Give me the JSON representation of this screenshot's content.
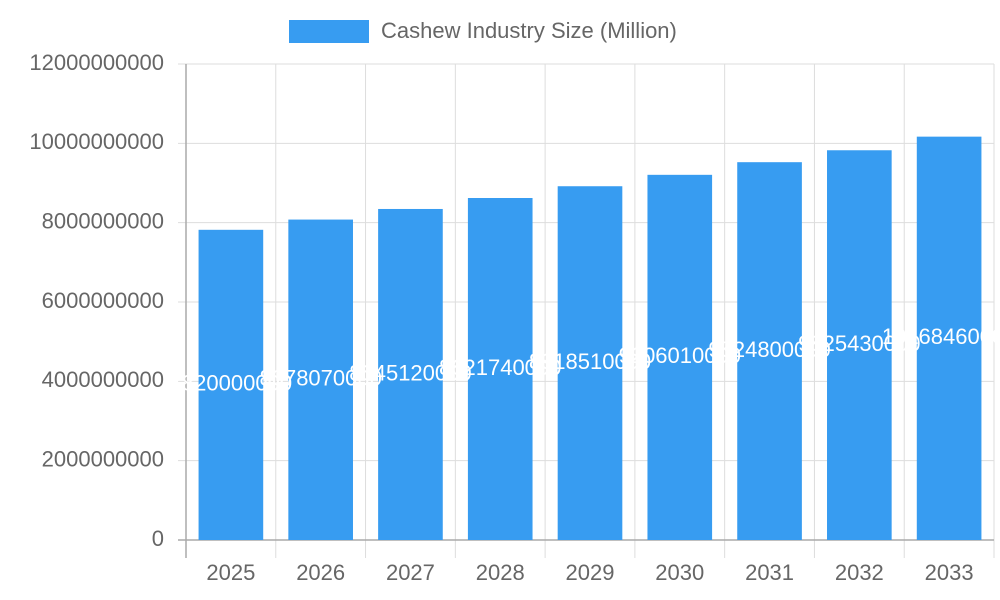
{
  "chart_data": {
    "type": "bar",
    "series": [
      {
        "name": "Cashew Industry Size (Million)",
        "color": "#379cf1",
        "values": [
          7820000000,
          8078070000,
          8345120000,
          8621740000,
          8918510000,
          9206010000,
          9524800000,
          9825430000,
          10168460000
        ]
      }
    ],
    "categories": [
      "2025",
      "2026",
      "2027",
      "2028",
      "2029",
      "2030",
      "2031",
      "2032",
      "2033"
    ],
    "ylim": [
      0,
      12000000000
    ],
    "yticks": [
      0,
      2000000000,
      4000000000,
      6000000000,
      8000000000,
      10000000000,
      12000000000
    ],
    "grid": true,
    "legend": "top"
  }
}
